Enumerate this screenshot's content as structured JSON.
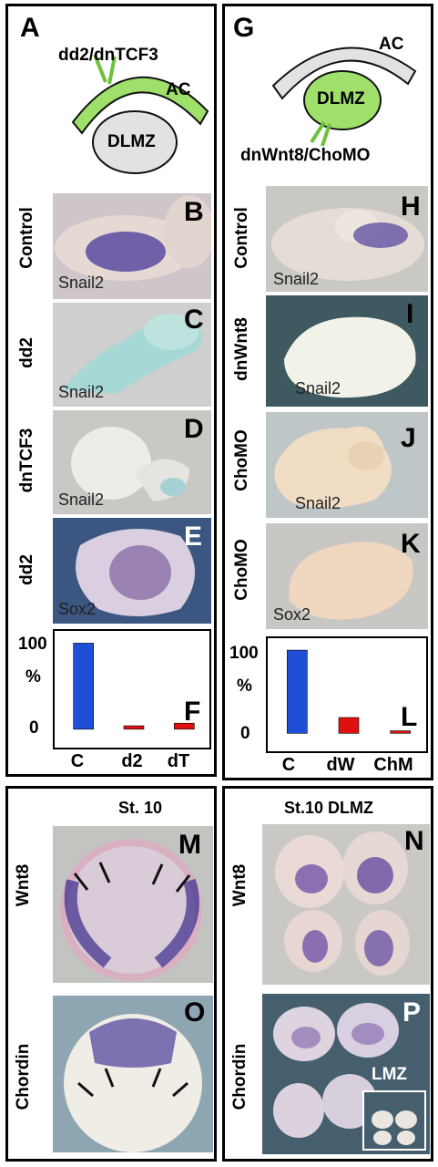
{
  "panels_top_left": {
    "letter": "A",
    "schematic": {
      "injection_label": "dd2/dnTCF3",
      "ac_label": "AC",
      "dlmz_label": "DLMZ"
    },
    "rows": [
      {
        "letter": "B",
        "treatment": "Control",
        "probe": "Snail2"
      },
      {
        "letter": "C",
        "treatment": "dd2",
        "probe": "Snail2"
      },
      {
        "letter": "D",
        "treatment": "dnTCF3",
        "probe": "Snail2"
      },
      {
        "letter": "E",
        "treatment": "dd2",
        "probe": "Sox2"
      }
    ],
    "chart_letter": "F"
  },
  "panels_top_right": {
    "letter": "G",
    "schematic": {
      "injection_label": "dnWnt8/ChoMO",
      "ac_label": "AC",
      "dlmz_label": "DLMZ"
    },
    "rows": [
      {
        "letter": "H",
        "treatment": "Control",
        "probe": "Snail2"
      },
      {
        "letter": "I",
        "treatment": "dnWnt8",
        "probe": "Snail2"
      },
      {
        "letter": "J",
        "treatment": "ChoMO",
        "probe": "Snail2"
      },
      {
        "letter": "K",
        "treatment": "ChoMO",
        "probe": "Sox2"
      }
    ],
    "chart_letter": "L"
  },
  "panels_bottom_left": {
    "stage": "St. 10",
    "rows": [
      {
        "letter": "M",
        "probe": "Wnt8"
      },
      {
        "letter": "O",
        "probe": "Chordin"
      }
    ]
  },
  "panels_bottom_right": {
    "stage": "St.10 DLMZ",
    "rows": [
      {
        "letter": "N",
        "probe": "Wnt8"
      },
      {
        "letter": "P",
        "probe": "Chordin",
        "inset": "LMZ"
      }
    ]
  },
  "colors": {
    "control_bar": "#1f4fd6",
    "treatment_bar": "#e01010",
    "schematic_green": "#9ee06a",
    "schematic_gray": "#e2e2e2"
  },
  "chart_data": [
    {
      "type": "bar",
      "panel": "F",
      "categories": [
        "C",
        "d2",
        "dT"
      ],
      "values": [
        100,
        4,
        7
      ],
      "ylabel": "%",
      "yticks": [
        "100",
        "0"
      ],
      "ylim": [
        -15,
        110
      ],
      "bar_colors": [
        "#1f4fd6",
        "#e01010",
        "#e01010"
      ]
    },
    {
      "type": "bar",
      "panel": "L",
      "categories": [
        "C",
        "dW",
        "ChM"
      ],
      "values": [
        100,
        19,
        3
      ],
      "ylabel": "%",
      "yticks": [
        "100",
        "0"
      ],
      "ylim": [
        -15,
        110
      ],
      "bar_colors": [
        "#1f4fd6",
        "#e01010",
        "#e01010"
      ]
    }
  ]
}
